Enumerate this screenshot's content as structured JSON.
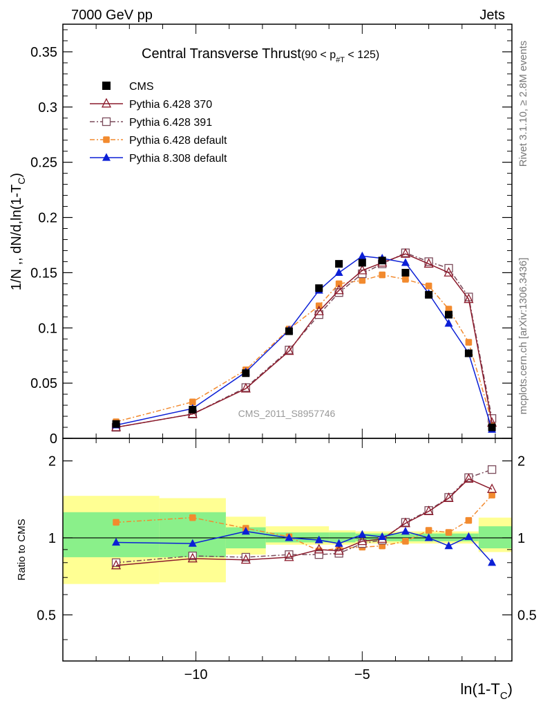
{
  "header": {
    "left": "7000 GeV pp",
    "right": "Jets"
  },
  "side_labels": {
    "top": "Rivet 3.1.10, ≥ 2.8M events",
    "bottom": "mcplots.cern.ch [arXiv:1306.3436]"
  },
  "plot_title": {
    "main": "Central Transverse Thrust",
    "cut": "(90 < p",
    "cut_sub": "#T",
    "cut_tail": " < 125)"
  },
  "watermark": "CMS_2011_S8957746",
  "y_title": {
    "main": "1/N ,, dN/d,ln(1-T",
    "sub": "C",
    "close": ")"
  },
  "x_title": {
    "main": "ln(1-T",
    "sub": "C",
    "close": ")"
  },
  "ratio_y_title": "Ratio to CMS",
  "legend": [
    {
      "label": "CMS",
      "color": "#000000",
      "marker": "square-filled",
      "line": "none"
    },
    {
      "label": "Pythia 6.428 370",
      "color": "#8b1a2b",
      "marker": "triangle-open",
      "line": "solid"
    },
    {
      "label": "Pythia 6.428 391",
      "color": "#7a4a5a",
      "marker": "square-open",
      "line": "dashdot"
    },
    {
      "label": "Pythia 6.428 default",
      "color": "#f28a2e",
      "marker": "circle-filled",
      "line": "dashdot"
    },
    {
      "label": "Pythia 8.308 default",
      "color": "#0b1fd6",
      "marker": "triangle-filled",
      "line": "solid"
    }
  ],
  "chart_data": {
    "type": "scatter",
    "x": [
      -12.4,
      -10.1,
      -8.5,
      -7.2,
      -6.3,
      -5.7,
      -5.0,
      -4.4,
      -3.7,
      -3.0,
      -2.4,
      -1.8,
      -1.1
    ],
    "main_panel": {
      "xlim": [
        -14.0,
        -0.5
      ],
      "ylim": [
        0,
        0.375
      ],
      "x_ticks": [
        -10,
        -5
      ],
      "x_tick_labels": [
        "−10",
        "−5"
      ],
      "y_ticks": [
        0,
        0.05,
        0.1,
        0.15,
        0.2,
        0.25,
        0.3,
        0.35
      ],
      "y_tick_labels": [
        "0",
        "0.05",
        "0.1",
        "0.15",
        "0.2",
        "0.25",
        "0.3",
        "0.35"
      ],
      "series": [
        {
          "name": "CMS",
          "values": [
            0.013,
            0.026,
            0.059,
            0.097,
            0.136,
            0.158,
            0.159,
            0.161,
            0.15,
            0.13,
            0.112,
            0.077,
            0.01
          ]
        },
        {
          "name": "Pythia 6.428 370",
          "values": [
            0.01,
            0.022,
            0.045,
            0.079,
            0.115,
            0.134,
            0.152,
            0.159,
            0.167,
            0.158,
            0.15,
            0.126,
            0.014
          ]
        },
        {
          "name": "Pythia 6.428 391",
          "values": [
            0.01,
            0.022,
            0.046,
            0.08,
            0.112,
            0.132,
            0.149,
            0.158,
            0.168,
            0.16,
            0.154,
            0.128,
            0.018
          ]
        },
        {
          "name": "Pythia 6.428 default",
          "values": [
            0.015,
            0.033,
            0.062,
            0.099,
            0.12,
            0.14,
            0.143,
            0.148,
            0.144,
            0.138,
            0.117,
            0.087,
            0.015
          ]
        },
        {
          "name": "Pythia 8.308 default",
          "values": [
            0.012,
            0.027,
            0.06,
            0.098,
            0.134,
            0.15,
            0.165,
            0.163,
            0.159,
            0.131,
            0.104,
            0.077,
            0.008
          ]
        }
      ]
    },
    "ratio_panel": {
      "ylim": [
        0.33,
        2.45
      ],
      "y_ticks": [
        0.5,
        1,
        2
      ],
      "y_tick_labels": [
        "0.5",
        "1",
        "2"
      ],
      "reference_line": 1,
      "series": [
        {
          "name": "Pythia 6.428 370",
          "values": [
            0.78,
            0.83,
            0.82,
            0.84,
            0.9,
            0.89,
            0.97,
            0.99,
            1.14,
            1.27,
            1.43,
            1.7,
            1.55
          ]
        },
        {
          "name": "Pythia 6.428 391",
          "values": [
            0.8,
            0.85,
            0.84,
            0.86,
            0.86,
            0.87,
            0.95,
            0.98,
            1.15,
            1.28,
            1.44,
            1.72,
            1.85
          ]
        },
        {
          "name": "Pythia 6.428 default",
          "values": [
            1.15,
            1.2,
            1.09,
            1.01,
            0.89,
            0.91,
            0.92,
            0.93,
            0.97,
            1.07,
            1.05,
            1.17,
            1.47
          ]
        },
        {
          "name": "Pythia 8.308 default",
          "values": [
            0.96,
            0.95,
            1.06,
            1.0,
            0.98,
            0.95,
            1.03,
            1.01,
            1.06,
            1.0,
            0.93,
            1.01,
            0.8
          ]
        }
      ],
      "uncertainty_bands": [
        {
          "x": [
            -14.0,
            -11.1
          ],
          "inner": [
            0.84,
            1.26
          ],
          "outer": [
            0.66,
            1.46
          ]
        },
        {
          "x": [
            -11.1,
            -9.1
          ],
          "inner": [
            0.84,
            1.26
          ],
          "outer": [
            0.67,
            1.43
          ]
        },
        {
          "x": [
            -9.1,
            -7.9
          ],
          "inner": [
            0.91,
            1.1
          ],
          "outer": [
            0.86,
            1.21
          ]
        },
        {
          "x": [
            -7.9,
            -6.0
          ],
          "inner": [
            0.96,
            1.05
          ],
          "outer": [
            0.94,
            1.11
          ]
        },
        {
          "x": [
            -6.0,
            -5.2
          ],
          "inner": [
            0.96,
            1.05
          ],
          "outer": [
            0.94,
            1.07
          ]
        },
        {
          "x": [
            -5.2,
            -1.5
          ],
          "inner": [
            0.97,
            1.04
          ],
          "outer": [
            0.95,
            1.06
          ]
        },
        {
          "x": [
            -1.5,
            -0.5
          ],
          "inner": [
            0.91,
            1.11
          ],
          "outer": [
            0.88,
            1.2
          ]
        }
      ]
    }
  }
}
